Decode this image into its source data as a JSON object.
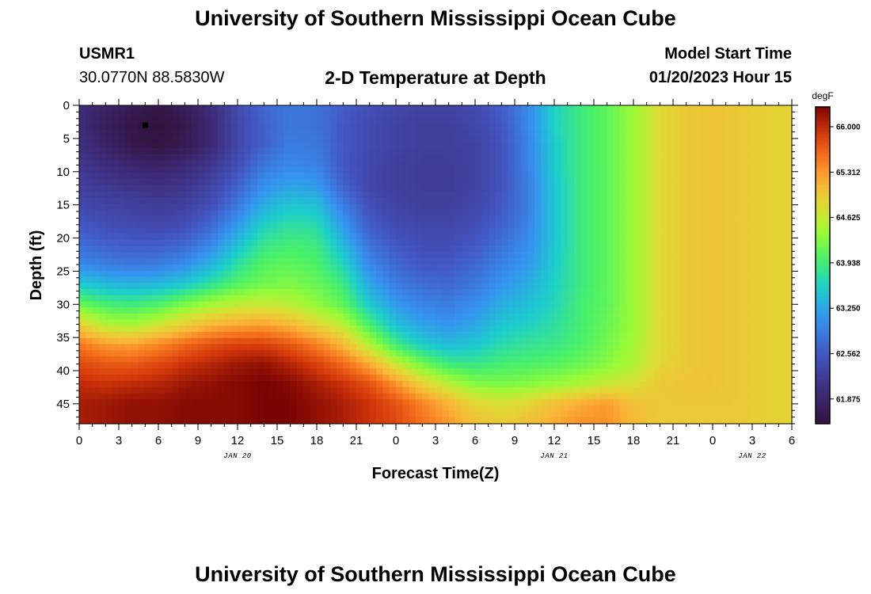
{
  "page": {
    "title_top": "University of Southern Mississippi Ocean Cube",
    "title_bottom": "University of Southern Mississippi Ocean Cube",
    "station_id": "USMR1",
    "station_coords": "30.0770N  88.5830W",
    "subtitle": "2-D Temperature at Depth",
    "model_start_label": "Model Start Time",
    "model_start_value": "01/20/2023 Hour 15"
  },
  "chart_data": {
    "type": "heatmap",
    "title": "2-D Temperature at Depth",
    "xlabel": "Forecast Time(Z)",
    "ylabel": "Depth (ft)",
    "x_tick_labels": [
      "0",
      "3",
      "6",
      "9",
      "12",
      "15",
      "18",
      "21",
      "0",
      "3",
      "6",
      "9",
      "12",
      "15",
      "18",
      "21",
      "0",
      "3",
      "6"
    ],
    "x_range_hours": [
      0,
      54
    ],
    "date_labels": [
      {
        "label": "JAN 20",
        "hour": 12
      },
      {
        "label": "JAN 21",
        "hour": 36
      },
      {
        "label": "JAN 22",
        "hour": 51
      }
    ],
    "y_tick_labels": [
      "0",
      "5",
      "10",
      "15",
      "20",
      "25",
      "30",
      "35",
      "40",
      "45"
    ],
    "y_range_ft": [
      0,
      48
    ],
    "marker": {
      "hour": 5,
      "depth": 3
    },
    "colorbar": {
      "unit": "degF",
      "min": 61.5,
      "max": 66.3,
      "tick_labels": [
        "66.000",
        "65.312",
        "64.625",
        "63.938",
        "63.250",
        "62.562",
        "61.875"
      ],
      "tick_values": [
        66.0,
        65.312,
        64.625,
        63.938,
        63.25,
        62.562,
        61.875
      ]
    },
    "grid_hours": [
      0,
      2,
      4,
      6,
      8,
      10,
      12,
      14,
      16,
      18,
      20,
      22,
      24,
      26,
      28,
      30,
      32,
      34,
      36,
      38,
      40,
      42,
      44,
      46,
      48,
      50,
      52,
      54
    ],
    "grid_depths": [
      0,
      3,
      6,
      9,
      12,
      15,
      18,
      21,
      24,
      27,
      30,
      33,
      36,
      39,
      42,
      45,
      48
    ],
    "values_degF": [
      [
        62.0,
        61.85,
        61.7,
        61.6,
        61.75,
        62.0,
        62.4,
        62.7,
        62.85,
        62.8,
        62.6,
        62.45,
        62.35,
        62.3,
        62.3,
        62.4,
        62.6,
        63.0,
        63.6,
        63.9,
        64.1,
        64.4,
        64.8,
        64.95,
        65.0,
        64.95,
        64.9,
        64.85
      ],
      [
        62.0,
        61.75,
        61.6,
        61.5,
        61.65,
        61.95,
        62.35,
        62.65,
        62.85,
        62.8,
        62.55,
        62.4,
        62.3,
        62.25,
        62.25,
        62.35,
        62.55,
        63.0,
        63.6,
        63.9,
        64.1,
        64.4,
        64.8,
        64.95,
        65.0,
        64.95,
        64.9,
        64.85
      ],
      [
        62.05,
        61.85,
        61.65,
        61.55,
        61.7,
        61.95,
        62.35,
        62.65,
        62.9,
        62.85,
        62.55,
        62.4,
        62.3,
        62.25,
        62.25,
        62.3,
        62.5,
        62.95,
        63.55,
        63.9,
        64.1,
        64.4,
        64.8,
        64.95,
        65.0,
        64.95,
        64.9,
        64.85
      ],
      [
        62.15,
        62.0,
        61.9,
        61.85,
        61.95,
        62.15,
        62.45,
        62.85,
        63.0,
        62.95,
        62.55,
        62.35,
        62.25,
        62.2,
        62.2,
        62.3,
        62.5,
        62.95,
        63.55,
        63.9,
        64.1,
        64.4,
        64.8,
        64.95,
        65.0,
        64.95,
        64.9,
        64.85
      ],
      [
        62.25,
        62.15,
        62.1,
        62.05,
        62.1,
        62.3,
        62.65,
        63.05,
        63.2,
        63.15,
        62.65,
        62.35,
        62.25,
        62.2,
        62.2,
        62.3,
        62.5,
        62.9,
        63.5,
        63.9,
        64.1,
        64.4,
        64.8,
        64.95,
        65.0,
        64.95,
        64.9,
        64.85
      ],
      [
        62.35,
        62.3,
        62.25,
        62.2,
        62.25,
        62.45,
        62.85,
        63.3,
        63.5,
        63.45,
        62.9,
        62.45,
        62.3,
        62.25,
        62.25,
        62.35,
        62.55,
        62.9,
        63.5,
        63.9,
        64.1,
        64.4,
        64.8,
        64.95,
        65.0,
        64.95,
        64.9,
        64.85
      ],
      [
        62.55,
        62.45,
        62.4,
        62.35,
        62.45,
        62.7,
        63.15,
        63.6,
        63.75,
        63.7,
        63.15,
        62.6,
        62.4,
        62.35,
        62.35,
        62.45,
        62.65,
        62.95,
        63.5,
        63.9,
        64.1,
        64.4,
        64.8,
        64.95,
        65.0,
        64.95,
        64.9,
        64.85
      ],
      [
        62.75,
        62.65,
        62.6,
        62.6,
        62.7,
        63.0,
        63.45,
        63.85,
        63.95,
        63.9,
        63.4,
        62.8,
        62.55,
        62.45,
        62.45,
        62.55,
        62.8,
        63.05,
        63.5,
        63.9,
        64.1,
        64.4,
        64.8,
        64.95,
        65.0,
        64.95,
        64.9,
        64.85
      ],
      [
        63.0,
        62.9,
        62.85,
        62.9,
        63.05,
        63.35,
        63.75,
        64.05,
        64.1,
        64.0,
        63.65,
        63.0,
        62.7,
        62.55,
        62.55,
        62.7,
        62.95,
        63.15,
        63.55,
        63.9,
        64.1,
        64.4,
        64.8,
        64.95,
        65.0,
        64.95,
        64.9,
        64.85
      ],
      [
        63.55,
        63.4,
        63.35,
        63.4,
        63.55,
        63.8,
        64.05,
        64.2,
        64.25,
        64.15,
        63.9,
        63.25,
        62.9,
        62.75,
        62.7,
        62.85,
        63.1,
        63.3,
        63.6,
        63.9,
        64.1,
        64.4,
        64.8,
        64.95,
        65.0,
        64.95,
        64.9,
        64.85
      ],
      [
        64.15,
        63.95,
        63.9,
        64.0,
        64.25,
        64.45,
        64.6,
        64.65,
        64.55,
        64.35,
        64.1,
        63.55,
        63.15,
        62.95,
        62.9,
        63.05,
        63.3,
        63.45,
        63.65,
        63.95,
        64.1,
        64.4,
        64.8,
        64.95,
        65.0,
        64.95,
        64.9,
        64.85
      ],
      [
        64.9,
        64.5,
        64.45,
        64.65,
        64.9,
        65.1,
        65.2,
        65.25,
        65.1,
        64.85,
        64.55,
        63.95,
        63.45,
        63.2,
        63.1,
        63.25,
        63.5,
        63.6,
        63.75,
        63.95,
        64.15,
        64.4,
        64.8,
        64.95,
        65.0,
        64.95,
        64.9,
        64.85
      ],
      [
        65.5,
        65.3,
        65.25,
        65.4,
        65.6,
        65.75,
        65.85,
        65.85,
        65.7,
        65.45,
        65.1,
        64.5,
        63.9,
        63.55,
        63.4,
        63.5,
        63.7,
        63.8,
        63.85,
        64.0,
        64.2,
        64.45,
        64.8,
        64.95,
        65.0,
        64.95,
        64.9,
        64.85
      ],
      [
        65.8,
        65.7,
        65.7,
        65.8,
        65.95,
        66.05,
        66.15,
        66.2,
        66.05,
        65.85,
        65.6,
        65.2,
        64.65,
        64.2,
        63.9,
        63.85,
        63.95,
        64.0,
        64.05,
        64.15,
        64.3,
        64.5,
        64.85,
        64.95,
        65.0,
        64.95,
        64.9,
        64.85
      ],
      [
        66.0,
        65.95,
        66.0,
        66.05,
        66.15,
        66.2,
        66.25,
        66.3,
        66.25,
        66.1,
        65.95,
        65.75,
        65.35,
        64.9,
        64.55,
        64.3,
        64.25,
        64.3,
        64.4,
        64.5,
        64.65,
        64.75,
        64.95,
        65.0,
        65.0,
        64.95,
        64.9,
        64.85
      ],
      [
        66.1,
        66.15,
        66.2,
        66.2,
        66.25,
        66.25,
        66.25,
        66.3,
        66.3,
        66.2,
        66.1,
        65.95,
        65.75,
        65.45,
        65.15,
        64.85,
        64.75,
        64.85,
        65.05,
        65.2,
        65.3,
        65.05,
        64.95,
        64.95,
        64.95,
        64.95,
        64.9,
        64.85
      ],
      [
        66.1,
        66.15,
        66.2,
        66.2,
        66.25,
        66.25,
        66.25,
        66.3,
        66.3,
        66.2,
        66.1,
        65.95,
        65.8,
        65.55,
        65.3,
        65.05,
        64.95,
        65.05,
        65.2,
        65.35,
        65.35,
        65.1,
        64.95,
        64.95,
        64.95,
        64.95,
        64.9,
        64.85
      ]
    ]
  }
}
